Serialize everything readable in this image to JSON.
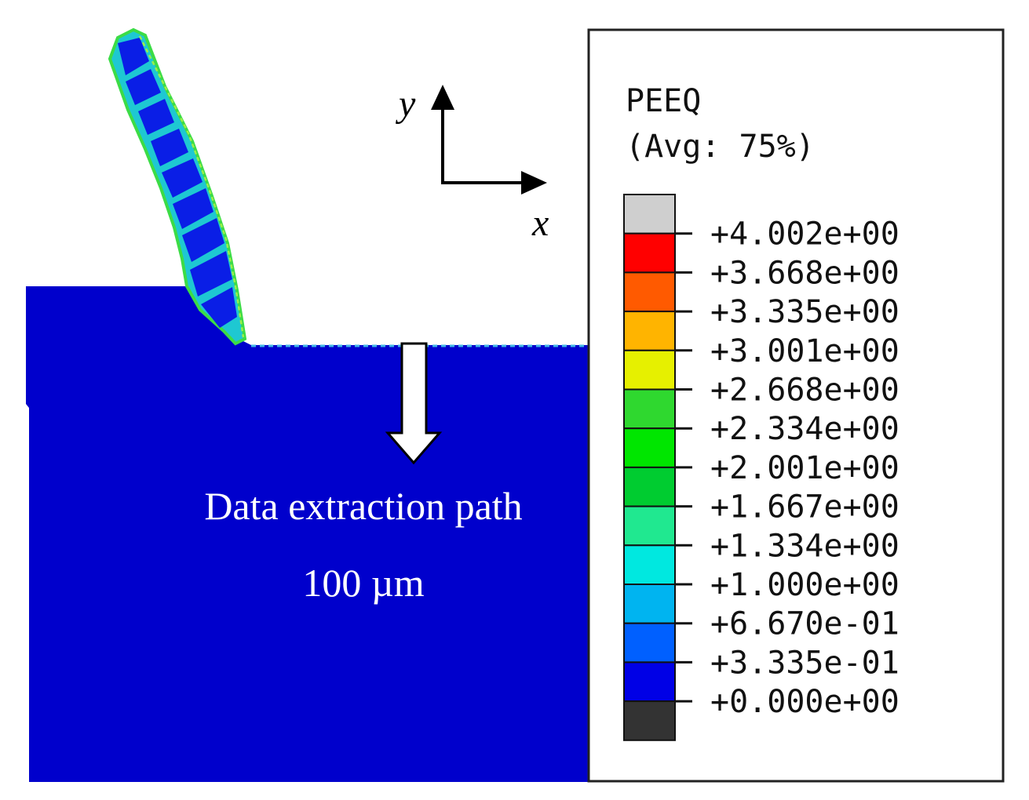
{
  "figure": {
    "path_label": "Data extraction path",
    "depth_label": "100 µm",
    "axes": {
      "x": "x",
      "y": "y"
    }
  },
  "legend": {
    "title": "PEEQ",
    "subtitle": "(Avg: 75%)",
    "swatches": [
      {
        "color": "#cfcfcf"
      },
      {
        "color": "#ff0000"
      },
      {
        "color": "#ff5a00"
      },
      {
        "color": "#ffb400"
      },
      {
        "color": "#e6f000"
      },
      {
        "color": "#2fd82f"
      },
      {
        "color": "#00e600"
      },
      {
        "color": "#00cc30"
      },
      {
        "color": "#20e890"
      },
      {
        "color": "#00e8e0"
      },
      {
        "color": "#00b4f0"
      },
      {
        "color": "#0060ff"
      },
      {
        "color": "#0000e6"
      },
      {
        "color": "#333333"
      }
    ],
    "ticks": [
      "+4.002e+00",
      "+3.668e+00",
      "+3.335e+00",
      "+3.001e+00",
      "+2.668e+00",
      "+2.334e+00",
      "+2.001e+00",
      "+1.667e+00",
      "+1.334e+00",
      "+1.000e+00",
      "+6.670e-01",
      "+3.335e-01",
      "+0.000e+00"
    ]
  },
  "colors": {
    "workpiece": "#0000cc",
    "chip_segment": "#0a1ee6",
    "shear_band": "#1ec8d2",
    "shear_band_edge": "#3cdc46"
  }
}
